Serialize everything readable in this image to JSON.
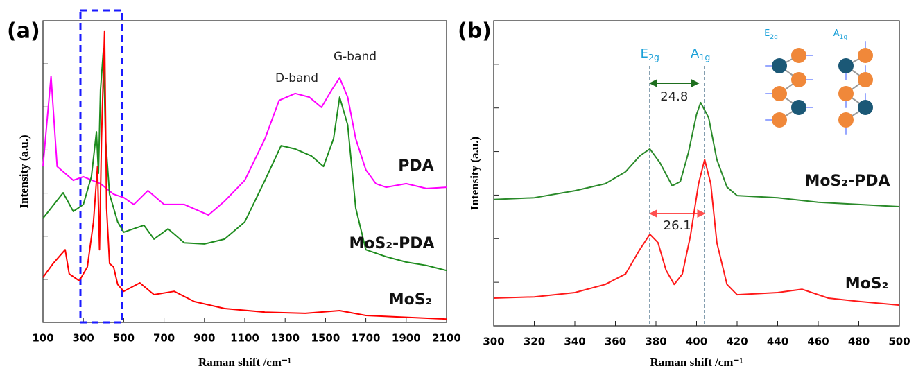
{
  "chart_data": [
    {
      "type": "line",
      "panel_label": "(a)",
      "x_label": "Raman shift /cm⁻¹",
      "y_label": "Intensity (a.u.)",
      "xlim": [
        100,
        2100
      ],
      "xticks": [
        100,
        300,
        500,
        700,
        900,
        1100,
        1300,
        1500,
        1700,
        1900,
        2100
      ],
      "ylim": [
        0,
        100
      ],
      "annotations": [
        "D-band",
        "G-band"
      ],
      "series": [
        {
          "name": "PDA",
          "color": "#ff00ff",
          "x": [
            100,
            140,
            170,
            250,
            300,
            385,
            450,
            500,
            550,
            620,
            700,
            800,
            920,
            1000,
            1100,
            1200,
            1270,
            1350,
            1420,
            1480,
            1530,
            1570,
            1610,
            1650,
            1700,
            1750,
            1800,
            1900,
            2000,
            2100
          ],
          "values": [
            51.7,
            81.6,
            51.7,
            47.1,
            48.3,
            46,
            42.5,
            41.4,
            39.1,
            43.7,
            39.1,
            39.1,
            35.6,
            40.2,
            47.1,
            60.9,
            73.6,
            75.9,
            74.7,
            71.3,
            77,
            81.1,
            74.7,
            60.9,
            50.6,
            46,
            44.8,
            46,
            44.4,
            44.8
          ]
        },
        {
          "name": "MoS₂-PDA",
          "color": "#1e8c1e",
          "x": [
            100,
            200,
            250,
            300,
            340,
            365,
            375,
            385,
            400,
            410,
            430,
            470,
            500,
            600,
            650,
            720,
            800,
            900,
            1000,
            1100,
            1200,
            1280,
            1350,
            1430,
            1490,
            1540,
            1570,
            1610,
            1650,
            1700,
            1800,
            1900,
            2000,
            2100
          ],
          "values": [
            34.5,
            43,
            36.8,
            39.1,
            48.3,
            63.2,
            49.4,
            77,
            90.8,
            60.9,
            42.5,
            33.3,
            29.9,
            32.2,
            27.6,
            31,
            26.4,
            26,
            27.6,
            33.3,
            47.1,
            58.6,
            57.5,
            55.2,
            51.7,
            60.9,
            74.7,
            65.5,
            37.9,
            24.1,
            21.8,
            20,
            18.9,
            17.2
          ]
        },
        {
          "name": "MoS₂",
          "color": "#ff0000",
          "x": [
            100,
            150,
            210,
            230,
            280,
            320,
            350,
            370,
            380,
            390,
            405,
            415,
            430,
            450,
            470,
            500,
            580,
            650,
            750,
            850,
            1000,
            1200,
            1400,
            1570,
            1700,
            2100
          ],
          "values": [
            14.9,
            19.5,
            24.1,
            16.1,
            13.8,
            18.4,
            33.3,
            51.7,
            24.1,
            60.9,
            96.6,
            37.9,
            19.5,
            18.4,
            12.6,
            10.3,
            13.1,
            9.2,
            10.3,
            6.9,
            4.6,
            3.4,
            3,
            3.9,
            2.3,
            1.1
          ]
        }
      ]
    },
    {
      "type": "line",
      "panel_label": "(b)",
      "x_label": "Raman shift /cm⁻¹",
      "y_label": "Intensity (a.u.)",
      "xlim": [
        300,
        500
      ],
      "xticks": [
        300,
        320,
        340,
        360,
        380,
        400,
        420,
        440,
        460,
        480,
        500
      ],
      "ylim": [
        0,
        100
      ],
      "markers": [
        {
          "x": 377,
          "label": "E",
          "label_sub": "2g"
        },
        {
          "x": 404,
          "label": "A",
          "label_sub": "1g"
        }
      ],
      "spacings": [
        {
          "from": 377,
          "to": 401,
          "label": "24.8",
          "color": "#1e6e1e"
        },
        {
          "from": 377,
          "to": 404,
          "label": "26.1",
          "color": "#ff5050"
        }
      ],
      "inset_labels": [
        {
          "label": "E",
          "label_sub": "2g"
        },
        {
          "label": "A",
          "label_sub": "1g"
        }
      ],
      "series": [
        {
          "name": "MoS₂-PDA",
          "color": "#2a8a2a",
          "x": [
            300,
            320,
            340,
            355,
            365,
            372,
            377,
            382,
            388,
            392,
            396,
            400,
            402,
            406,
            410,
            415,
            420,
            440,
            460,
            480,
            500
          ],
          "values": [
            41.4,
            42,
            44.3,
            46.6,
            50.5,
            55.7,
            58,
            53.4,
            45.9,
            47.3,
            56.8,
            69.3,
            73.2,
            68.2,
            54.5,
            45.5,
            42.7,
            42,
            40.5,
            39.8,
            39.1
          ]
        },
        {
          "name": "MoS₂",
          "color": "#ff1a1a",
          "x": [
            300,
            320,
            340,
            355,
            365,
            372,
            377,
            381,
            385,
            389,
            393,
            397,
            401,
            404,
            407,
            410,
            415,
            420,
            440,
            452,
            465,
            480,
            500
          ],
          "values": [
            9.1,
            9.5,
            10.9,
            13.6,
            17,
            25,
            30,
            27.3,
            18.2,
            13.6,
            17,
            29.5,
            46.6,
            54.5,
            46.6,
            27.3,
            13.6,
            10.2,
            10.9,
            12,
            9.1,
            8,
            6.8
          ]
        }
      ]
    }
  ]
}
